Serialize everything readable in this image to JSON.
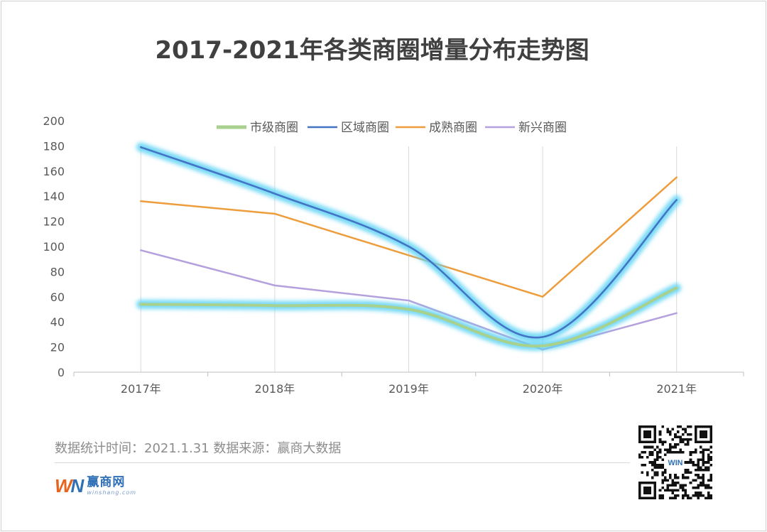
{
  "chart_data": {
    "type": "line",
    "title": "2017-2021年各类商圈增量分布走势图",
    "categories": [
      "2017年",
      "2018年",
      "2019年",
      "2020年",
      "2021年"
    ],
    "ylim": [
      0,
      200
    ],
    "yticks": [
      "0",
      "20",
      "40",
      "60",
      "80",
      "100",
      "120",
      "140",
      "160",
      "180",
      "200"
    ],
    "grid": "vertical",
    "legend_position": "top",
    "series": [
      {
        "name": "市级商圈",
        "values": [
          54,
          53,
          50,
          21,
          67
        ],
        "color": "#a9d18e",
        "smooth": true,
        "glow": true
      },
      {
        "name": "区域商圈",
        "values": [
          179,
          142,
          100,
          28,
          137
        ],
        "color": "#4472c4",
        "smooth": true,
        "glow": true
      },
      {
        "name": "成熟商圈",
        "values": [
          136,
          126,
          93,
          60,
          155
        ],
        "color": "#ed9d3c",
        "smooth": false,
        "glow": false
      },
      {
        "name": "新兴商圈",
        "values": [
          97,
          69,
          57,
          18,
          47
        ],
        "color": "#b4a0dc",
        "smooth": false,
        "glow": false
      }
    ]
  },
  "footer": {
    "note": "数据统计时间：2021.1.31  数据来源：赢商大数据"
  },
  "logo": {
    "mark_w": "W",
    "mark_n": "N",
    "name": "赢商网",
    "domain": "winshang.com"
  },
  "qr": {
    "center_label": "WIN"
  }
}
